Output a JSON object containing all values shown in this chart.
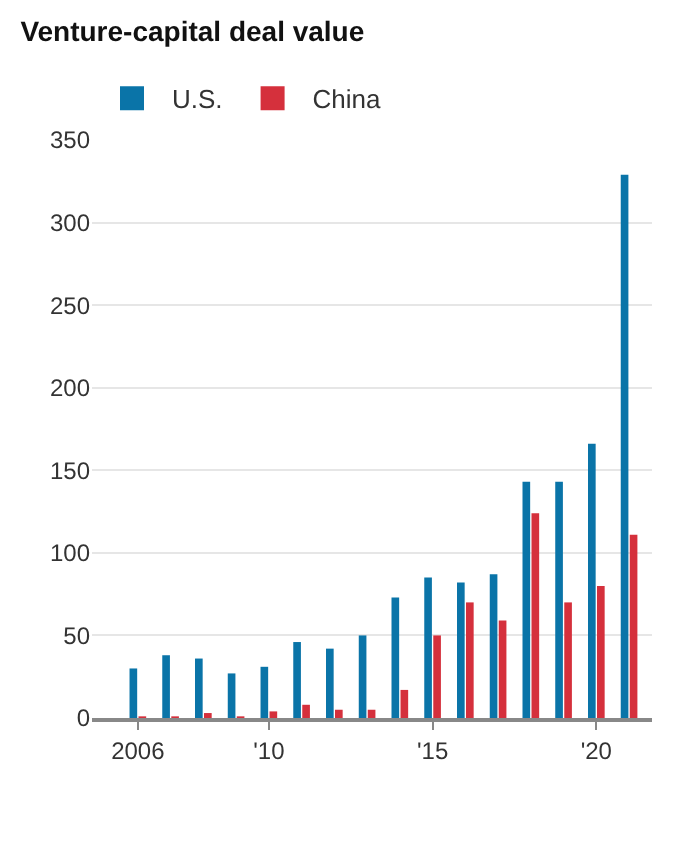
{
  "chart_data": {
    "type": "bar",
    "title": "Venture-capital deal value",
    "x": [
      2006,
      2007,
      2008,
      2009,
      2010,
      2011,
      2012,
      2013,
      2014,
      2015,
      2016,
      2017,
      2018,
      2019,
      2020,
      2021
    ],
    "series": [
      {
        "name": "U.S.",
        "color": "#0a74a8",
        "values": [
          30,
          38,
          36,
          27,
          31,
          46,
          42,
          50,
          73,
          85,
          82,
          87,
          143,
          143,
          166,
          329
        ]
      },
      {
        "name": "China",
        "color": "#d5303c",
        "values": [
          1,
          1,
          3,
          1,
          4,
          8,
          5,
          5,
          17,
          50,
          70,
          59,
          124,
          70,
          80,
          111
        ]
      }
    ],
    "xlim": [
      2004.6,
      2021.7
    ],
    "xticks": [
      2006,
      {
        "value": 2010,
        "label": "'10"
      },
      {
        "value": 2015,
        "label": "'15"
      },
      {
        "value": 2020,
        "label": "'20"
      }
    ],
    "ylim": [
      0,
      350
    ],
    "yticks": [
      0,
      50,
      100,
      150,
      200,
      250,
      300,
      350
    ],
    "grid": "y",
    "legend": "top left"
  }
}
